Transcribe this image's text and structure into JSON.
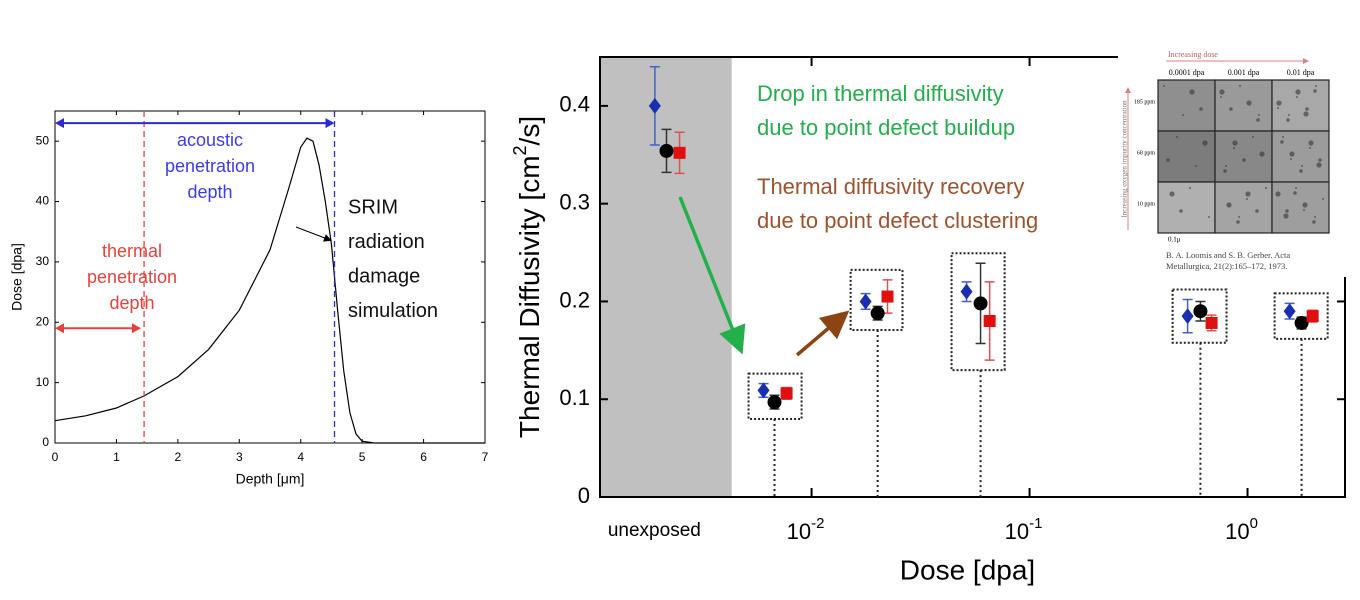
{
  "chart_data": [
    {
      "type": "line",
      "xlabel": "Depth [μm]",
      "ylabel": "Dose [dpa]",
      "x": [
        0,
        0.5,
        1,
        1.45,
        2,
        2.5,
        3,
        3.5,
        3.8,
        4.0,
        4.1,
        4.2,
        4.3,
        4.4,
        4.5,
        4.6,
        4.7,
        4.8,
        4.9,
        5.0,
        5.2,
        7
      ],
      "values": [
        3.7,
        4.5,
        5.8,
        7.8,
        11,
        15.5,
        22,
        32,
        42,
        49,
        50.5,
        50,
        46,
        40,
        33,
        22,
        12,
        5,
        1.5,
        0.3,
        0,
        0
      ],
      "color": "#000000",
      "xlim": [
        0,
        7
      ],
      "xticks": [
        0,
        1,
        2,
        3,
        4,
        5,
        6,
        7
      ],
      "ylim": [
        0,
        55
      ],
      "yticks": [
        0,
        10,
        20,
        30,
        40,
        50
      ],
      "markers": [
        {
          "x": 1.45,
          "color": "#e8413c"
        },
        {
          "x": 4.55,
          "color": "#2b2bd6"
        }
      ],
      "spans": [
        {
          "from": 0,
          "to": 4.55,
          "y": 53,
          "color": "#2b2bd6"
        },
        {
          "from": 0,
          "to": 1.4,
          "y": 19,
          "color": "#e8413c"
        }
      ],
      "annotations": [
        {
          "lines": [
            "acoustic",
            "penetration",
            "depth"
          ],
          "color": "#3b3bf0"
        },
        {
          "lines": [
            "thermal",
            "penetration",
            "depth"
          ],
          "color": "#e8413c"
        },
        {
          "lines": [
            "SRIM",
            "radiation",
            "damage",
            "simulation"
          ],
          "color": "#111111"
        }
      ]
    },
    {
      "type": "scatter",
      "xlabel": "Dose [dpa]",
      "ylabel": "Thermal Diffusivity [cm",
      "ylabel_sup": "2",
      "ylabel_end": "/s]",
      "xscale": "log",
      "xlim": [
        0.00107,
        2.8
      ],
      "xticks": [
        {
          "value": 0.0019,
          "label": "unexposed"
        },
        {
          "value": 0.01,
          "label": "10",
          "exponent": "-2"
        },
        {
          "value": 0.1,
          "label": "10",
          "exponent": "-1"
        },
        {
          "value": 1,
          "label": "10",
          "exponent": "0"
        }
      ],
      "ylim": [
        0,
        0.45
      ],
      "yticks": [
        0,
        0.1,
        0.2,
        0.3,
        0.4
      ],
      "shaded_region": [
        0.00107,
        0.0043
      ],
      "shade_color": "#c0c0c0",
      "group_boxes": [
        1,
        2,
        3,
        4,
        5
      ],
      "series": [
        {
          "marker": "diamond",
          "color": "#1a2fb0",
          "error_color": "#4060d0",
          "x": [
            0.00191,
            0.00602,
            0.0177,
            0.0514,
            0.531,
            1.56
          ],
          "values": [
            0.4,
            0.109,
            0.2,
            0.21,
            0.185,
            0.19
          ],
          "errors": [
            0.04,
            0.007,
            0.008,
            0.01,
            0.017,
            0.008
          ]
        },
        {
          "marker": "circle",
          "color": "#000000",
          "error_color": "#333333",
          "x": [
            0.00216,
            0.00676,
            0.0201,
            0.0596,
            0.608,
            1.77
          ],
          "values": [
            0.354,
            0.097,
            0.188,
            0.198,
            0.19,
            0.178
          ],
          "errors": [
            0.022,
            0.007,
            0.007,
            0.041,
            0.01,
            0.006
          ]
        },
        {
          "marker": "square",
          "color": "#e01010",
          "error_color": "#e05050",
          "x": [
            0.00248,
            0.00768,
            0.0223,
            0.0656,
            0.684,
            1.99
          ],
          "values": [
            0.352,
            0.106,
            0.205,
            0.18,
            0.178,
            0.185
          ],
          "errors": [
            0.021,
            0.006,
            0.017,
            0.04,
            0.008,
            0.006
          ]
        }
      ],
      "annotations": [
        {
          "lines": [
            "Drop in thermal diffusivity",
            "due to point defect buildup"
          ],
          "color": "#22b04a"
        },
        {
          "lines": [
            "Thermal diffusivity recovery",
            "due to point defect clustering"
          ],
          "color": "#a0522d"
        }
      ],
      "inset": {
        "title": "Increasing dose",
        "columns": [
          "0.0001 dpa",
          "0.001 dpa",
          "0.01 dpa"
        ],
        "rows": [
          "185 ppm",
          "68 ppm",
          "10 ppm"
        ],
        "row_title": "Increasing oxygen impurity concentration",
        "scale": "0.1μ",
        "citation": [
          "B. A. Loomis and S. B. Gerber. Acta",
          "Metallurgica, 21(2):165–172, 1973."
        ]
      }
    }
  ]
}
